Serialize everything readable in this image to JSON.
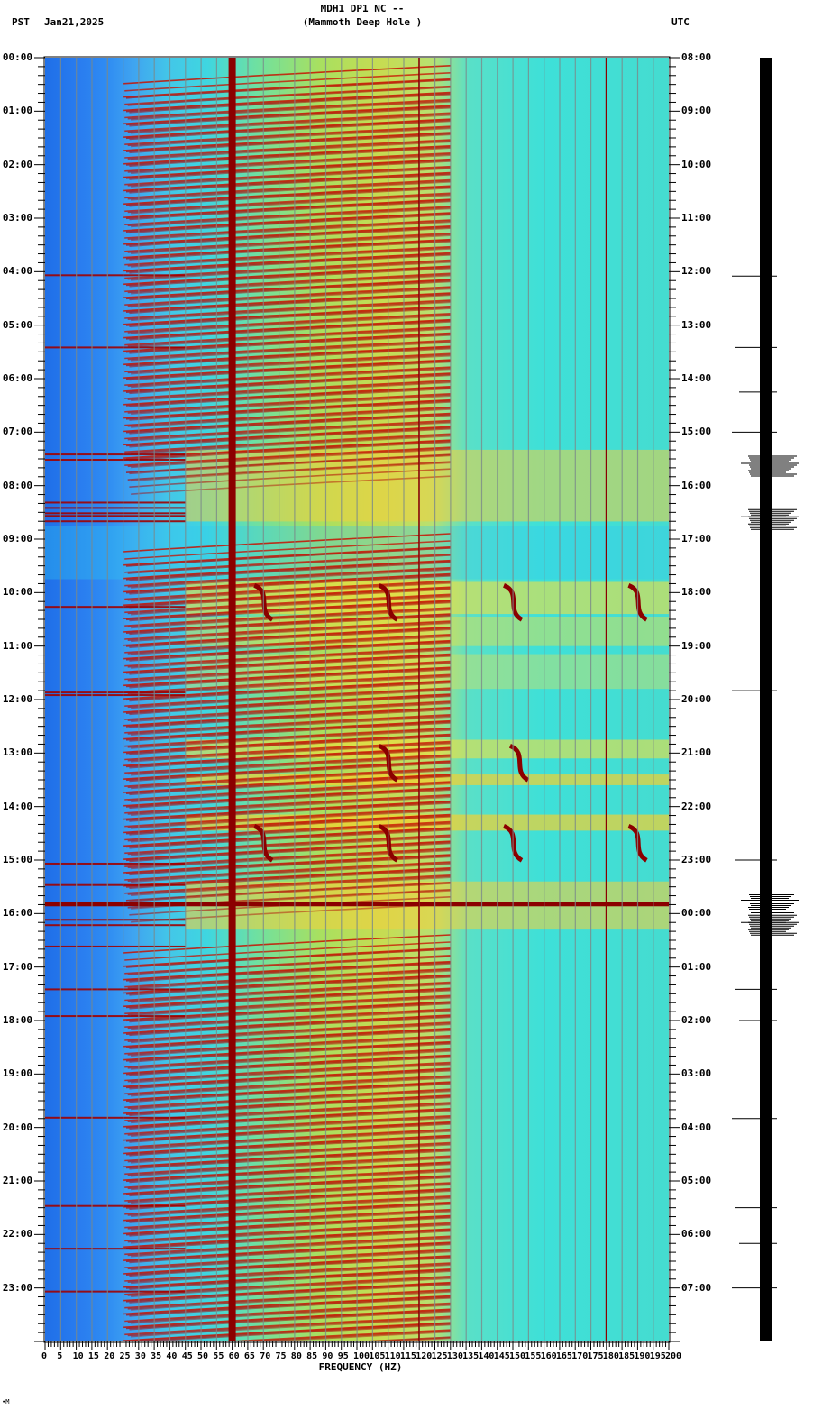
{
  "header": {
    "title_line1": "MDH1 DP1 NC --",
    "title_line2": "(Mammoth Deep Hole )",
    "timezone_left": "PST",
    "date": "Jan21,2025",
    "timezone_right": "UTC"
  },
  "footer": {
    "xlabel": "FREQUENCY (HZ)",
    "corner_mark": "∙M"
  },
  "colors": {
    "background": "#ffffff",
    "low_power": "#1f6fe8",
    "mid_low": "#3fd6e0",
    "mid": "#a8e060",
    "high": "#ffd000",
    "very_high": "#8b0000",
    "grid": "#808080",
    "trace": "#000000"
  },
  "chart_data": {
    "type": "heatmap",
    "title": "MDH1 DP1 NC -- (Mammoth Deep Hole )",
    "subtitle": "Jan21,2025",
    "xlabel": "FREQUENCY (HZ)",
    "ylabel_left": "PST",
    "ylabel_right": "UTC",
    "xlim": [
      0,
      200
    ],
    "x_ticks": [
      0,
      5,
      10,
      15,
      20,
      25,
      30,
      35,
      40,
      45,
      50,
      55,
      60,
      65,
      70,
      75,
      80,
      85,
      90,
      95,
      100,
      105,
      110,
      115,
      120,
      125,
      130,
      135,
      140,
      145,
      150,
      155,
      160,
      165,
      170,
      175,
      180,
      185,
      190,
      195,
      200
    ],
    "y_ticks_left_pst": [
      "00:00",
      "01:00",
      "02:00",
      "03:00",
      "04:00",
      "05:00",
      "06:00",
      "07:00",
      "08:00",
      "09:00",
      "10:00",
      "11:00",
      "12:00",
      "13:00",
      "14:00",
      "15:00",
      "16:00",
      "17:00",
      "18:00",
      "19:00",
      "20:00",
      "21:00",
      "22:00",
      "23:00"
    ],
    "y_ticks_right_utc": [
      "08:00",
      "09:00",
      "10:00",
      "11:00",
      "12:00",
      "13:00",
      "14:00",
      "15:00",
      "16:00",
      "17:00",
      "18:00",
      "19:00",
      "20:00",
      "21:00",
      "22:00",
      "23:00",
      "00:00",
      "01:00",
      "02:00",
      "03:00",
      "04:00",
      "05:00",
      "06:00",
      "07:00"
    ],
    "grid": true,
    "grid_spacing_hz": 5,
    "persistent_lines_hz": [
      60,
      120,
      180
    ],
    "colormap": "jet (blue=low power, red=high power)",
    "features": [
      {
        "label": "Strong persistent 60 Hz line",
        "freq_hz": 60,
        "time_pst": "00:00-24:00"
      },
      {
        "label": "Harmonic chirp sweeps (25-130 Hz)",
        "time_pst": "00:00-07:20, 09:00-15:30, 16:20-24:00",
        "interval_min": 15
      },
      {
        "label": "Broadband noise burst",
        "time_pst": "07:20-08:40"
      },
      {
        "label": "Tonal S-curve signals near 75, 115, 155, 195 Hz",
        "time_pst": "09:50-15:20"
      },
      {
        "label": "Broadband event (earthquake)",
        "time_pst": "15:45-16:10"
      }
    ],
    "seismogram_events_pst": [
      "04:05",
      "05:25",
      "06:15",
      "07:00",
      "07:35",
      "08:35",
      "11:50",
      "15:00",
      "15:45",
      "16:10",
      "17:25",
      "18:00",
      "19:50",
      "21:30",
      "22:10",
      "23:00"
    ]
  },
  "axes": {
    "left_ticks": [
      "00:00",
      "01:00",
      "02:00",
      "03:00",
      "04:00",
      "05:00",
      "06:00",
      "07:00",
      "08:00",
      "09:00",
      "10:00",
      "11:00",
      "12:00",
      "13:00",
      "14:00",
      "15:00",
      "16:00",
      "17:00",
      "18:00",
      "19:00",
      "20:00",
      "21:00",
      "22:00",
      "23:00"
    ],
    "right_ticks": [
      "08:00",
      "09:00",
      "10:00",
      "11:00",
      "12:00",
      "13:00",
      "14:00",
      "15:00",
      "16:00",
      "17:00",
      "18:00",
      "19:00",
      "20:00",
      "21:00",
      "22:00",
      "23:00",
      "00:00",
      "01:00",
      "02:00",
      "03:00",
      "04:00",
      "05:00",
      "06:00",
      "07:00"
    ],
    "x_ticks": [
      "0",
      "5",
      "10",
      "15",
      "20",
      "25",
      "30",
      "35",
      "40",
      "45",
      "50",
      "55",
      "60",
      "65",
      "70",
      "75",
      "80",
      "85",
      "90",
      "95",
      "100",
      "105",
      "110",
      "115",
      "120",
      "125",
      "130",
      "135",
      "140",
      "145",
      "150",
      "155",
      "160",
      "165",
      "170",
      "175",
      "180",
      "185",
      "190",
      "195",
      "200"
    ]
  }
}
